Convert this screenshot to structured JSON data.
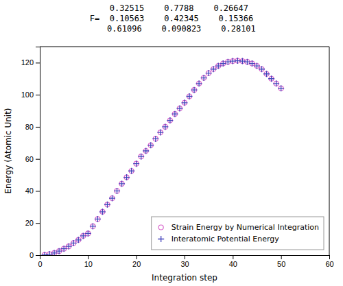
{
  "chart_data": {
    "type": "scatter",
    "title": "   0.32515    0.7788    0.26647\nF=  0.10563    0.42345    0.15366\n    0.61096    0.090823    0.28101",
    "xlabel": "Integration step",
    "ylabel": "Energy (Atomic Unit)",
    "x": [
      1,
      2,
      3,
      4,
      5,
      6,
      7,
      8,
      9,
      10,
      11,
      12,
      13,
      14,
      15,
      16,
      17,
      18,
      19,
      20,
      21,
      22,
      23,
      24,
      25,
      26,
      27,
      28,
      29,
      30,
      31,
      32,
      33,
      34,
      35,
      36,
      37,
      38,
      39,
      40,
      41,
      42,
      43,
      44,
      45,
      46,
      47,
      48,
      49,
      50
    ],
    "series": [
      {
        "name": "Strain Energy by Numerical Integration",
        "color": "#d966cc",
        "marker": "circle",
        "values": [
          0.15,
          0.6,
          1.3,
          2.5,
          4.0,
          5.5,
          7.5,
          9.5,
          12.0,
          13.5,
          18.0,
          22.5,
          27.0,
          31.5,
          35.5,
          40.0,
          44.5,
          48.5,
          52.5,
          57.0,
          61.5,
          65.0,
          68.5,
          72.5,
          76.5,
          80.0,
          84.0,
          88.0,
          91.5,
          95.0,
          99.0,
          103.0,
          107.0,
          110.5,
          113.5,
          116.0,
          118.0,
          119.5,
          120.5,
          121.0,
          121.2,
          121.0,
          120.5,
          119.5,
          118.0,
          116.0,
          113.0,
          110.0,
          107.0,
          104.0
        ]
      },
      {
        "name": "Interatomic Potential Energy",
        "color": "#4444bb",
        "marker": "plus",
        "values": [
          0.15,
          0.6,
          1.3,
          2.5,
          4.0,
          5.5,
          7.5,
          9.5,
          12.0,
          13.5,
          18.0,
          22.5,
          27.0,
          31.5,
          35.5,
          40.0,
          44.5,
          48.5,
          52.5,
          57.0,
          61.5,
          65.0,
          68.5,
          72.5,
          76.5,
          80.0,
          84.0,
          88.0,
          91.5,
          95.0,
          99.0,
          103.0,
          107.0,
          110.5,
          113.5,
          116.0,
          118.0,
          119.5,
          120.5,
          121.0,
          121.2,
          121.0,
          120.5,
          119.5,
          118.0,
          116.0,
          113.0,
          110.0,
          107.0,
          104.0
        ]
      }
    ],
    "xlim": [
      0,
      60
    ],
    "ylim": [
      0,
      130
    ],
    "xticks": [
      0,
      10,
      20,
      30,
      40,
      50,
      60
    ],
    "yticks": [
      0,
      20,
      40,
      60,
      80,
      100,
      120
    ],
    "grid": false,
    "legend": "lower right"
  }
}
